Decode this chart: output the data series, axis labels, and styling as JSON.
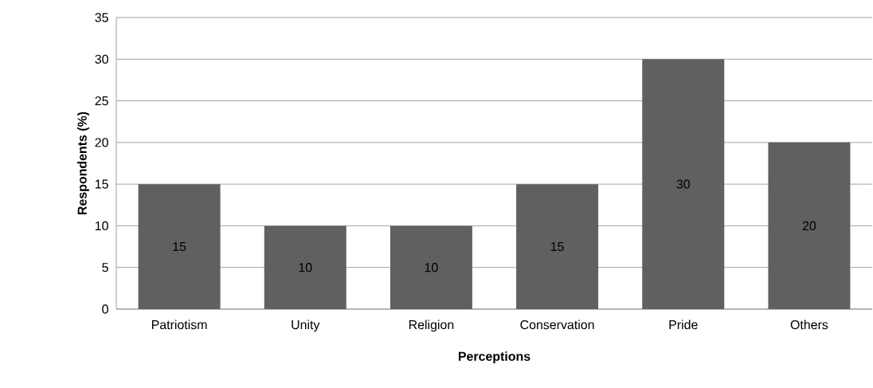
{
  "chart_data": {
    "type": "bar",
    "xlabel": "Perceptions",
    "ylabel": "Respondents (%)",
    "categories": [
      "Patriotism",
      "Unity",
      "Religion",
      "Conservation",
      "Pride",
      "Others"
    ],
    "values": [
      15,
      10,
      10,
      15,
      30,
      20
    ],
    "color": "#606060",
    "ylim": [
      0,
      35
    ],
    "yticks": [
      0,
      5,
      10,
      15,
      20,
      25,
      30,
      35
    ],
    "grid": "y",
    "data_labels": true
  }
}
